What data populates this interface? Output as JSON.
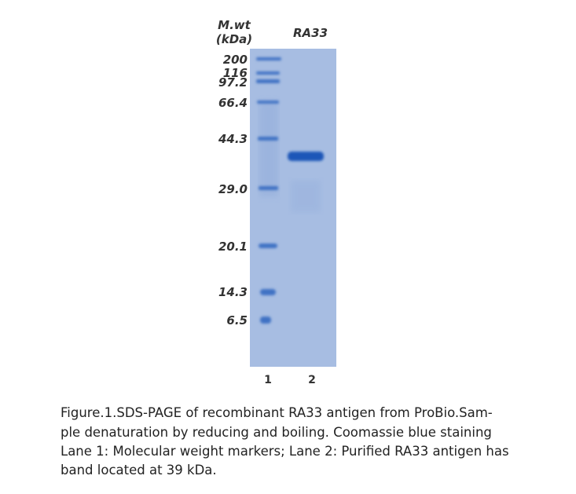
{
  "header": {
    "mw_label": "M.wt",
    "mw_unit": "(kDa)",
    "lane2_label": "RA33"
  },
  "markers": [
    "200",
    "116",
    "97.2",
    "66.4",
    "44.3",
    "29.0",
    "20.1",
    "14.3",
    "6.5"
  ],
  "lanes": [
    "1",
    "2"
  ],
  "caption": [
    "Figure.1.SDS-PAGE of recombinant RA33 antigen from ProBio.Sam-",
    "ple denaturation by reducing and boiling. Coomassie blue staining",
    "Lane 1: Molecular weight markers; Lane 2: Purified RA33 antigen has",
    "band located at 39 kDa."
  ]
}
